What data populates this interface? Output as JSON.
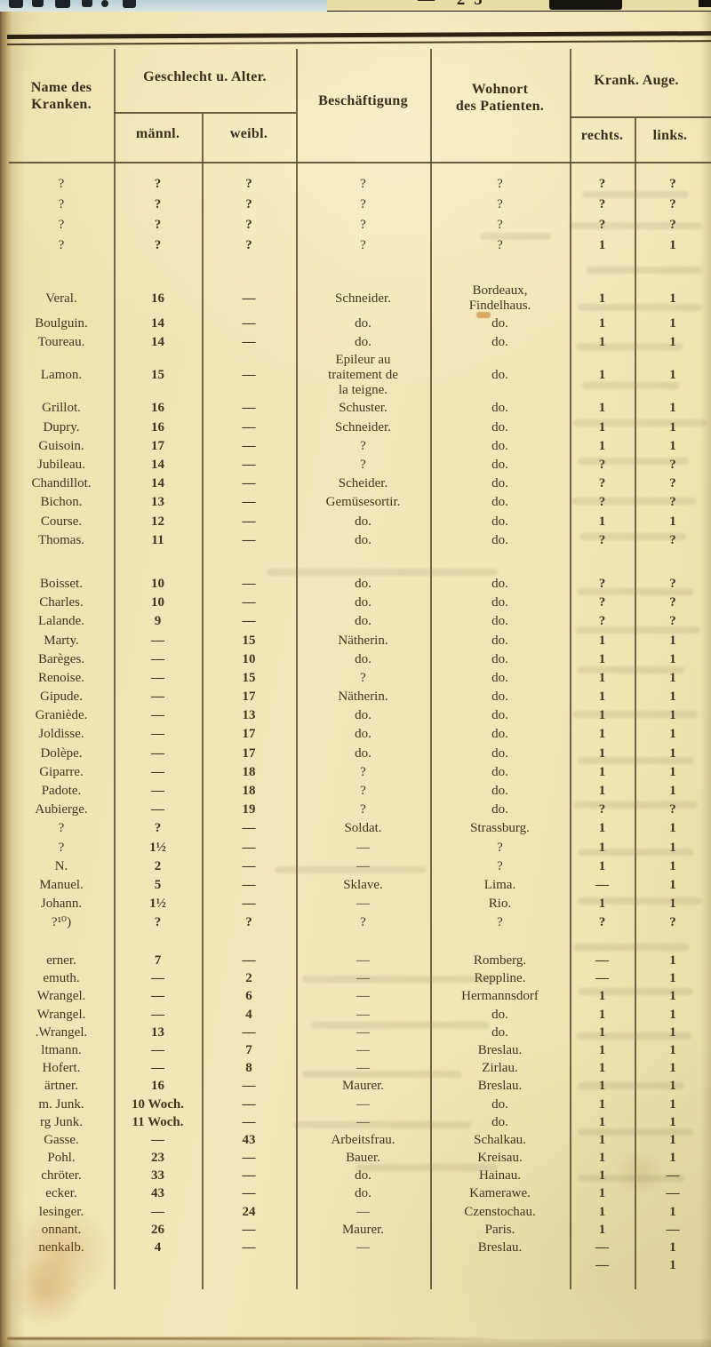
{
  "page": {
    "page_marker": "— 25",
    "paper_color": "#f0e5b5",
    "ink_color": "#44351e",
    "rule_color": "#2c2212"
  },
  "table": {
    "header": {
      "name": "Name des\nKranken.",
      "sex_age": "Geschlecht u. Alter.",
      "male": "männl.",
      "female": "weibl.",
      "occupation": "Beschäftigung",
      "residence": "Wohnort\ndes Patienten.",
      "sick_eye": "Krank. Auge.",
      "right": "rechts.",
      "left": "links."
    },
    "sections": [
      {
        "rows": [
          {
            "name": "?",
            "m": "?",
            "w": "?",
            "job": "?",
            "home": "?",
            "r": "?",
            "l": "?"
          },
          {
            "name": "?",
            "m": "?",
            "w": "?",
            "job": "?",
            "home": "?",
            "r": "?",
            "l": "?"
          },
          {
            "name": "?",
            "m": "?",
            "w": "?",
            "job": "?",
            "home": "?",
            "r": "?",
            "l": "?"
          },
          {
            "name": "?",
            "m": "?",
            "w": "?",
            "job": "?",
            "home": "?",
            "r": "1",
            "l": "1"
          }
        ]
      },
      {
        "rows": [
          {
            "name": "Veral.",
            "m": "16",
            "w": "—",
            "job": "Schneider.",
            "home": "Bordeaux,\nFindelhaus.",
            "r": "1",
            "l": "1"
          },
          {
            "name": "Boulguin.",
            "m": "14",
            "w": "—",
            "job": "do.",
            "home": "do.",
            "r": "1",
            "l": "1"
          },
          {
            "name": "Toureau.",
            "m": "14",
            "w": "—",
            "job": "do.",
            "home": "do.",
            "r": "1",
            "l": "1"
          },
          {
            "name": "Lamon.",
            "m": "15",
            "w": "—",
            "job": "Epileur au\ntraitement de\nla teigne.",
            "home": "do.",
            "r": "1",
            "l": "1"
          },
          {
            "name": "Grillot.",
            "m": "16",
            "w": "—",
            "job": "Schuster.",
            "home": "do.",
            "r": "1",
            "l": "1"
          },
          {
            "name": "Dupry.",
            "m": "16",
            "w": "—",
            "job": "Schneider.",
            "home": "do.",
            "r": "1",
            "l": "1"
          },
          {
            "name": "Guisoin.",
            "m": "17",
            "w": "—",
            "job": "?",
            "home": "do.",
            "r": "1",
            "l": "1"
          },
          {
            "name": "Jubileau.",
            "m": "14",
            "w": "—",
            "job": "?",
            "home": "do.",
            "r": "?",
            "l": "?"
          },
          {
            "name": "Chandillot.",
            "m": "14",
            "w": "—",
            "job": "Scheider.",
            "home": "do.",
            "r": "?",
            "l": "?"
          },
          {
            "name": "Bichon.",
            "m": "13",
            "w": "—",
            "job": "Gemüsesortir.",
            "home": "do.",
            "r": "?",
            "l": "?"
          },
          {
            "name": "Course.",
            "m": "12",
            "w": "—",
            "job": "do.",
            "home": "do.",
            "r": "1",
            "l": "1"
          },
          {
            "name": "Thomas.",
            "m": "11",
            "w": "—",
            "job": "do.",
            "home": "do.",
            "r": "?",
            "l": "?"
          }
        ]
      },
      {
        "rows": [
          {
            "name": "Boisset.",
            "m": "10",
            "w": "—",
            "job": "do.",
            "home": "do.",
            "r": "?",
            "l": "?"
          },
          {
            "name": "Charles.",
            "m": "10",
            "w": "—",
            "job": "do.",
            "home": "do.",
            "r": "?",
            "l": "?"
          },
          {
            "name": "Lalande.",
            "m": "9",
            "w": "—",
            "job": "do.",
            "home": "do.",
            "r": "?",
            "l": "?"
          },
          {
            "name": "Marty.",
            "m": "—",
            "w": "15",
            "job": "Nätherin.",
            "home": "do.",
            "r": "1",
            "l": "1"
          },
          {
            "name": "Barèges.",
            "m": "—",
            "w": "10",
            "job": "do.",
            "home": "do.",
            "r": "1",
            "l": "1"
          },
          {
            "name": "Renoise.",
            "m": "—",
            "w": "15",
            "job": "?",
            "home": "do.",
            "r": "1",
            "l": "1"
          },
          {
            "name": "Gipude.",
            "m": "—",
            "w": "17",
            "job": "Nätherin.",
            "home": "do.",
            "r": "1",
            "l": "1"
          },
          {
            "name": "Graniède.",
            "m": "—",
            "w": "13",
            "job": "do.",
            "home": "do.",
            "r": "1",
            "l": "1"
          },
          {
            "name": "Joldisse.",
            "m": "—",
            "w": "17",
            "job": "do.",
            "home": "do.",
            "r": "1",
            "l": "1"
          },
          {
            "name": "Dolèpe.",
            "m": "—",
            "w": "17",
            "job": "do.",
            "home": "do.",
            "r": "1",
            "l": "1"
          },
          {
            "name": "Giparre.",
            "m": "—",
            "w": "18",
            "job": "?",
            "home": "do.",
            "r": "1",
            "l": "1"
          },
          {
            "name": "Padote.",
            "m": "—",
            "w": "18",
            "job": "?",
            "home": "do.",
            "r": "1",
            "l": "1"
          },
          {
            "name": "Aubierge.",
            "m": "—",
            "w": "19",
            "job": "?",
            "home": "do.",
            "r": "?",
            "l": "?"
          },
          {
            "name": "?",
            "m": "?",
            "w": "—",
            "job": "Soldat.",
            "home": "Strassburg.",
            "r": "1",
            "l": "1"
          },
          {
            "name": "?",
            "m": "1½",
            "w": "—",
            "job": "—",
            "home": "?",
            "r": "1",
            "l": "1"
          },
          {
            "name": "N.",
            "m": "2",
            "w": "—",
            "job": "—",
            "home": "?",
            "r": "1",
            "l": "1"
          },
          {
            "name": "Manuel.",
            "m": "5",
            "w": "—",
            "job": "Sklave.",
            "home": "Lima.",
            "r": "—",
            "l": "1"
          },
          {
            "name": "Johann.",
            "m": "1½",
            "w": "—",
            "job": "—",
            "home": "Rio.",
            "r": "1",
            "l": "1"
          },
          {
            "name": "?¹⁰)",
            "m": "?",
            "w": "?",
            "job": "?",
            "home": "?",
            "r": "?",
            "l": "?"
          }
        ]
      },
      {
        "rows": [
          {
            "name": "erner.",
            "m": "7",
            "w": "—",
            "job": "—",
            "home": "Romberg.",
            "r": "—",
            "l": "1"
          },
          {
            "name": "emuth.",
            "m": "—",
            "w": "2",
            "job": "—",
            "home": "Reppline.",
            "r": "—",
            "l": "1"
          },
          {
            "name": "Wrangel.",
            "m": "—",
            "w": "6",
            "job": "—",
            "home": "Hermannsdorf",
            "r": "1",
            "l": "1"
          },
          {
            "name": "Wrangel.",
            "m": "—",
            "w": "4",
            "job": "—",
            "home": "do.",
            "r": "1",
            "l": "1"
          },
          {
            "name": ".Wrangel.",
            "m": "13",
            "w": "—",
            "job": "—",
            "home": "do.",
            "r": "1",
            "l": "1"
          },
          {
            "name": "ltmann.",
            "m": "—",
            "w": "7",
            "job": "—",
            "home": "Breslau.",
            "r": "1",
            "l": "1"
          },
          {
            "name": "Hofert.",
            "m": "—",
            "w": "8",
            "job": "—",
            "home": "Zirlau.",
            "r": "1",
            "l": "1"
          },
          {
            "name": "ärtner.",
            "m": "16",
            "w": "—",
            "job": "Maurer.",
            "home": "Breslau.",
            "r": "1",
            "l": "1"
          },
          {
            "name": "m. Junk.",
            "m": "10 Woch.",
            "w": "—",
            "job": "—",
            "home": "do.",
            "r": "1",
            "l": "1"
          },
          {
            "name": "rg Junk.",
            "m": "11 Woch.",
            "w": "—",
            "job": "—",
            "home": "do.",
            "r": "1",
            "l": "1"
          },
          {
            "name": "Gasse.",
            "m": "—",
            "w": "43",
            "job": "Arbeitsfrau.",
            "home": "Schalkau.",
            "r": "1",
            "l": "1"
          },
          {
            "name": "Pohl.",
            "m": "23",
            "w": "—",
            "job": "Bauer.",
            "home": "Kreisau.",
            "r": "1",
            "l": "1"
          },
          {
            "name": "chröter.",
            "m": "33",
            "w": "—",
            "job": "do.",
            "home": "Hainau.",
            "r": "1",
            "l": "—"
          },
          {
            "name": "ecker.",
            "m": "43",
            "w": "—",
            "job": "do.",
            "home": "Kamerawe.",
            "r": "1",
            "l": "—"
          },
          {
            "name": "lesinger.",
            "m": "—",
            "w": "24",
            "job": "—",
            "home": "Czenstochau.",
            "r": "1",
            "l": "1"
          },
          {
            "name": "onnant.",
            "m": "26",
            "w": "—",
            "job": "Maurer.",
            "home": "Paris.",
            "r": "1",
            "l": "—"
          },
          {
            "name": "nenkalb.",
            "m": "4",
            "w": "—",
            "job": "—",
            "home": "Breslau.",
            "r": "—",
            "l": "1"
          },
          {
            "name": "",
            "m": "",
            "w": "",
            "job": "",
            "home": "",
            "r": "—",
            "l": "1"
          }
        ]
      }
    ]
  }
}
